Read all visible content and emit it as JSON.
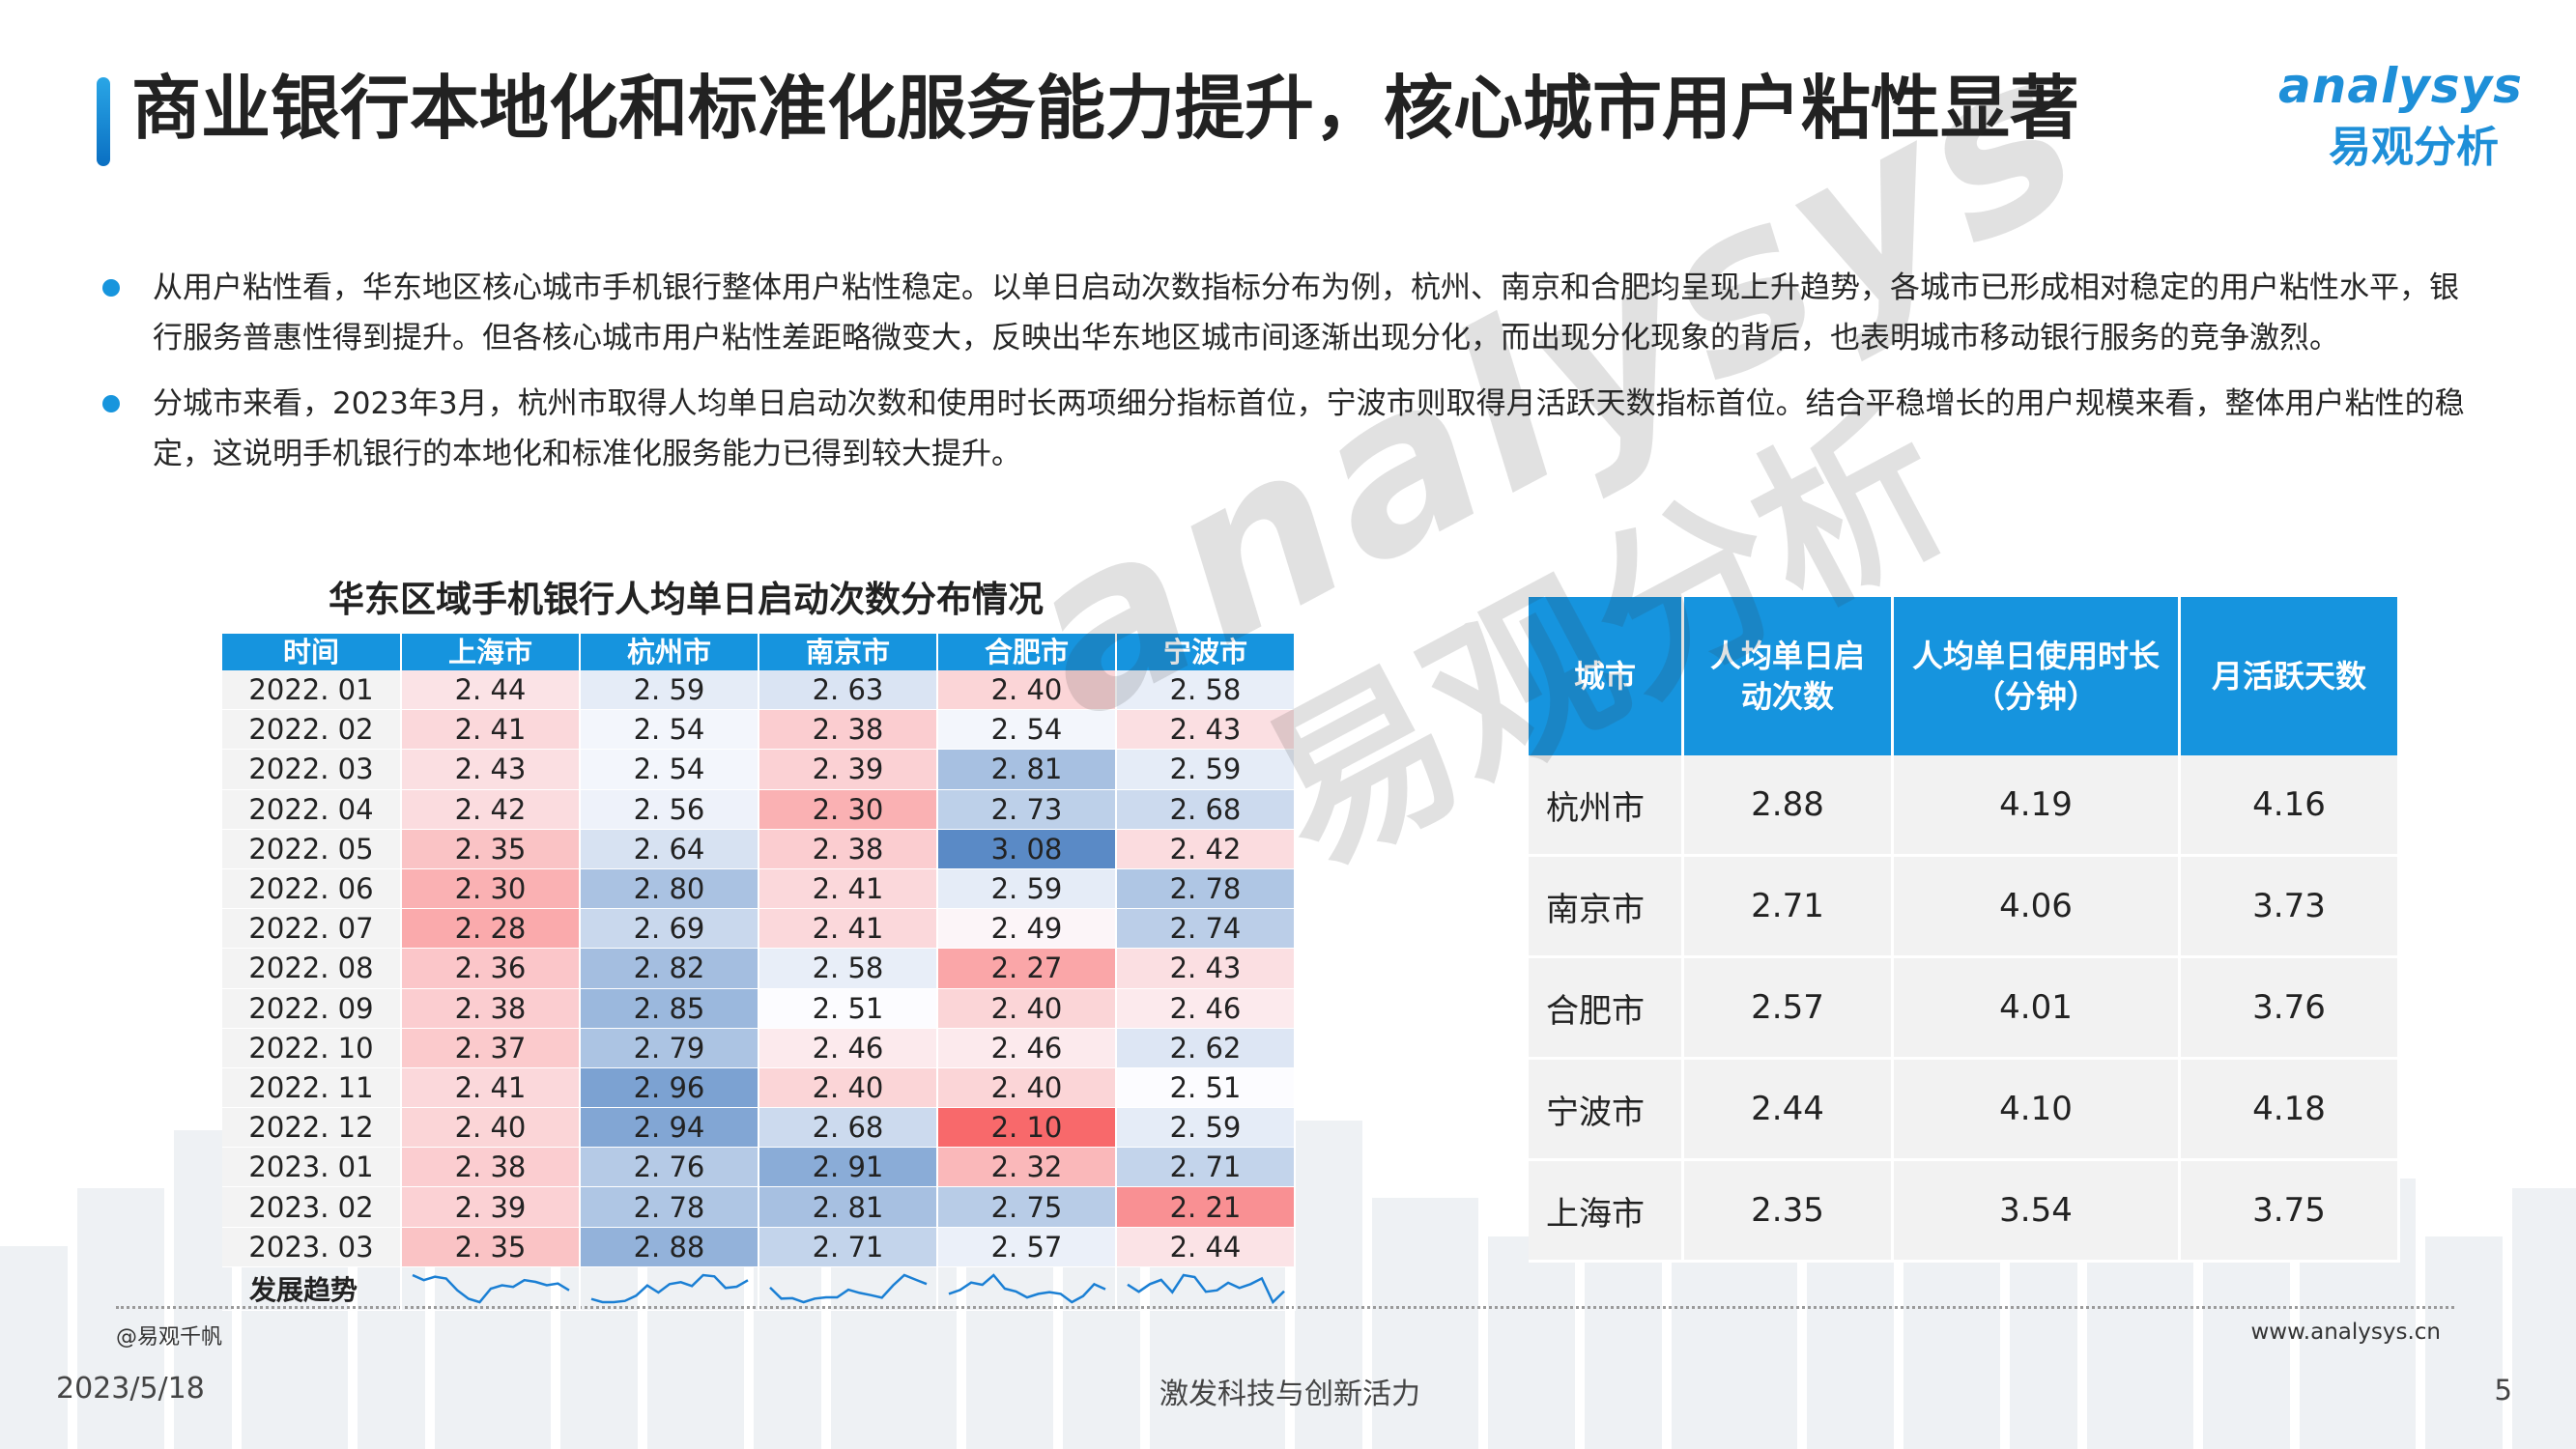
{
  "header": {
    "title": "商业银行本地化和标准化服务能力提升，核心城市用户粘性显著",
    "logo_word": "analysys",
    "logo_cn": "易观分析"
  },
  "bullets": [
    "从用户粘性看，华东地区核心城市手机银行整体用户粘性稳定。以单日启动次数指标分布为例，杭州、南京和合肥均呈现上升趋势，各城市已形成相对稳定的用户粘性水平，银行服务普惠性得到提升。但各核心城市用户粘性差距略微变大，反映出华东地区城市间逐渐出现分化，而出现分化现象的背后，也表明城市移动银行服务的竞争激烈。",
    "分城市来看，2023年3月，杭州市取得人均单日启动次数和使用时长两项细分指标首位，宁波市则取得月活跃天数指标首位。结合平稳增长的用户规模来看，整体用户粘性的稳定，这说明手机银行的本地化和标准化服务能力已得到较大提升。"
  ],
  "chart_data": [
    {
      "type": "heatmap",
      "title": "华东区域手机银行人均单日启动次数分布情况",
      "row_header": "时间",
      "columns": [
        "上海市",
        "杭州市",
        "南京市",
        "合肥市",
        "宁波市"
      ],
      "rows": [
        {
          "time": "2022. 01",
          "values": [
            "2. 44",
            "2. 59",
            "2. 63",
            "2. 40",
            "2. 58"
          ]
        },
        {
          "time": "2022. 02",
          "values": [
            "2. 41",
            "2. 54",
            "2. 38",
            "2. 54",
            "2. 43"
          ]
        },
        {
          "time": "2022. 03",
          "values": [
            "2. 43",
            "2. 54",
            "2. 39",
            "2. 81",
            "2. 59"
          ]
        },
        {
          "time": "2022. 04",
          "values": [
            "2. 42",
            "2. 56",
            "2. 30",
            "2. 73",
            "2. 68"
          ]
        },
        {
          "time": "2022. 05",
          "values": [
            "2. 35",
            "2. 64",
            "2. 38",
            "3. 08",
            "2. 42"
          ]
        },
        {
          "time": "2022. 06",
          "values": [
            "2. 30",
            "2. 80",
            "2. 41",
            "2. 59",
            "2. 78"
          ]
        },
        {
          "time": "2022. 07",
          "values": [
            "2. 28",
            "2. 69",
            "2. 41",
            "2. 49",
            "2. 74"
          ]
        },
        {
          "time": "2022. 08",
          "values": [
            "2. 36",
            "2. 82",
            "2. 58",
            "2. 27",
            "2. 43"
          ]
        },
        {
          "time": "2022. 09",
          "values": [
            "2. 38",
            "2. 85",
            "2. 51",
            "2. 40",
            "2. 46"
          ]
        },
        {
          "time": "2022. 10",
          "values": [
            "2. 37",
            "2. 79",
            "2. 46",
            "2. 46",
            "2. 62"
          ]
        },
        {
          "time": "2022. 11",
          "values": [
            "2. 41",
            "2. 96",
            "2. 40",
            "2. 40",
            "2. 51"
          ]
        },
        {
          "time": "2022. 12",
          "values": [
            "2. 40",
            "2. 94",
            "2. 68",
            "2. 10",
            "2. 59"
          ]
        },
        {
          "time": "2023. 01",
          "values": [
            "2. 38",
            "2. 76",
            "2. 91",
            "2. 32",
            "2. 71"
          ]
        },
        {
          "time": "2023. 02",
          "values": [
            "2. 39",
            "2. 78",
            "2. 81",
            "2. 75",
            "2. 21"
          ]
        },
        {
          "time": "2023. 03",
          "values": [
            "2. 35",
            "2. 88",
            "2. 71",
            "2. 57",
            "2. 44"
          ]
        }
      ],
      "trend_label": "发展趋势",
      "colors": {
        "low": "#f8696b",
        "mid": "#fcfcff",
        "high": "#5a8ac6"
      }
    },
    {
      "type": "table",
      "headers": [
        "城市",
        "人均单日启动次数",
        "人均单日使用时长（分钟）",
        "月活跃天数"
      ],
      "rows": [
        [
          "杭州市",
          "2.88",
          "4.19",
          "4.16"
        ],
        [
          "南京市",
          "2.71",
          "4.06",
          "3.73"
        ],
        [
          "合肥市",
          "2.57",
          "4.01",
          "3.76"
        ],
        [
          "宁波市",
          "2.44",
          "4.10",
          "4.18"
        ],
        [
          "上海市",
          "2.35",
          "3.54",
          "3.75"
        ]
      ]
    }
  ],
  "footer": {
    "credit": "@易观千帆",
    "site": "www.analysys.cn",
    "date": "2023/5/18",
    "slogan": "激发科技与创新活力",
    "page": "5"
  },
  "watermark": {
    "word": "analysys",
    "cn": "易观分析"
  }
}
